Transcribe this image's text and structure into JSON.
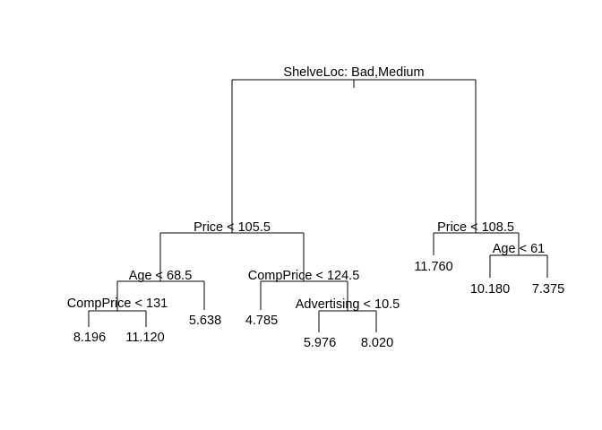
{
  "tree": {
    "splits": {
      "root": "ShelveLoc: Bad,Medium",
      "price_left": "Price < 105.5",
      "price_right": "Price < 108.5",
      "age_left": "Age < 68.5",
      "age_right": "Age < 61",
      "comp_low": "CompPrice < 131",
      "comp_mid": "CompPrice < 124.5",
      "advertising": "Advertising < 10.5"
    },
    "leaves": {
      "l1": "8.196",
      "l2": "11.120",
      "l3": "5.638",
      "l4": "4.785",
      "l5": "5.976",
      "l6": "8.020",
      "l7": "11.760",
      "l8": "10.180",
      "l9": "7.375"
    }
  }
}
